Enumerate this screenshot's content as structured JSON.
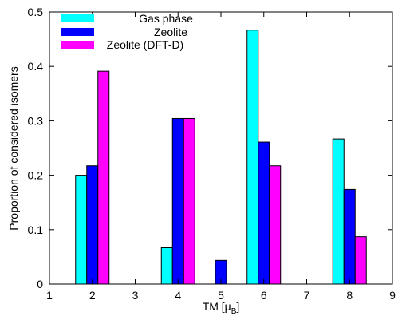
{
  "chart_data": {
    "type": "bar",
    "xlabel": "TM [μB]",
    "xlabel_main": "TM [μ",
    "xlabel_sub": "B",
    "xlabel_close": "]",
    "ylabel": "Proportion of considered isomers",
    "xlim": [
      1,
      9
    ],
    "ylim": [
      0,
      0.5
    ],
    "x_ticks": [
      1,
      2,
      3,
      4,
      5,
      6,
      7,
      8,
      9
    ],
    "y_ticks": [
      0,
      0.1,
      0.2,
      0.3,
      0.4,
      0.5
    ],
    "y_tick_labels": [
      "0",
      "0.1",
      "0.2",
      "0.3",
      "0.4",
      "0.5"
    ],
    "categories": [
      1,
      2,
      3,
      4,
      5,
      6,
      7,
      8,
      9
    ],
    "legend_position": "top-left",
    "grid": false,
    "series": [
      {
        "name": "Gas phase",
        "color": "#00ffff",
        "values": [
          0,
          0.2,
          0,
          0.0667,
          0,
          0.4667,
          0,
          0.2667,
          0
        ]
      },
      {
        "name": "Zeolite",
        "color": "#0000ff",
        "values": [
          0,
          0.2174,
          0,
          0.3043,
          0.0435,
          0.2609,
          0,
          0.1739,
          0
        ]
      },
      {
        "name": "Zeolite (DFT-D)",
        "color": "#ff00ff",
        "values": [
          0,
          0.3913,
          0,
          0.3043,
          0,
          0.2174,
          0,
          0.087,
          0
        ]
      }
    ]
  }
}
